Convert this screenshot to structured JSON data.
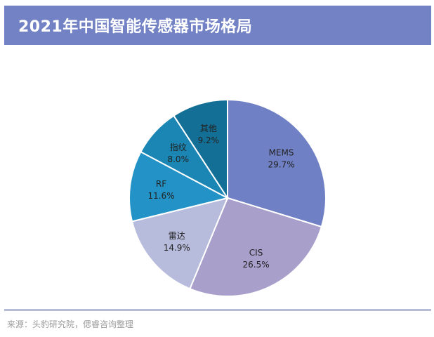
{
  "header": {
    "title": "2021年中国智能传感器市场格局",
    "accent_color": "#7282c4"
  },
  "chart_data": {
    "type": "pie",
    "title": "",
    "start_angle_deg": 0,
    "direction": "clockwise",
    "slices": [
      {
        "name": "MEMS",
        "value": 29.7,
        "label": "29.7%",
        "color": "#7080c5"
      },
      {
        "name": "CIS",
        "value": 26.5,
        "label": "26.5%",
        "color": "#a99fcb"
      },
      {
        "name": "雷达",
        "value": 14.9,
        "label": "14.9%",
        "color": "#b8bcdc"
      },
      {
        "name": "RF",
        "value": 11.6,
        "label": "11.6%",
        "color": "#2393c7"
      },
      {
        "name": "指纹",
        "value": 8.0,
        "label": "8.0%",
        "color": "#1b86b3"
      },
      {
        "name": "其他",
        "value": 9.2,
        "label": "9.2%",
        "color": "#136f96"
      }
    ]
  },
  "footer": {
    "source": "来源：头豹研究院，偲睿咨询整理"
  }
}
